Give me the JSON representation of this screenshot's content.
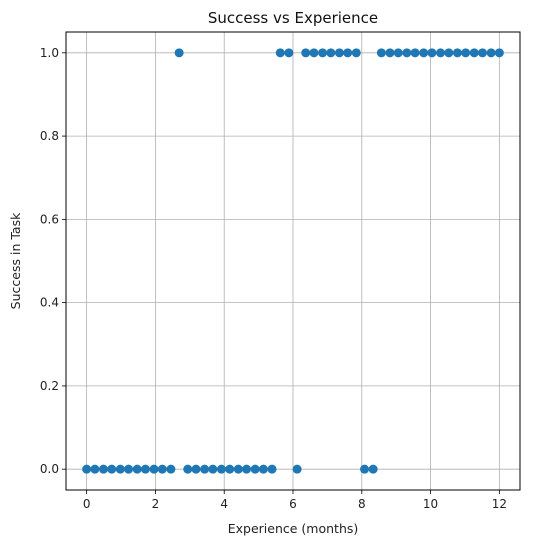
{
  "chart_data": {
    "type": "scatter",
    "title": "Success vs Experience",
    "xlabel": "Experience (months)",
    "ylabel": "Success in Task",
    "xlim": [
      -0.6,
      12.6
    ],
    "ylim": [
      -0.05,
      1.05
    ],
    "xticks": [
      0,
      2,
      4,
      6,
      8,
      10,
      12
    ],
    "yticks": [
      0.0,
      0.2,
      0.4,
      0.6,
      0.8,
      1.0
    ],
    "xtick_labels": [
      "0",
      "2",
      "4",
      "6",
      "8",
      "10",
      "12"
    ],
    "ytick_labels": [
      "0.0",
      "0.2",
      "0.4",
      "0.6",
      "0.8",
      "1.0"
    ],
    "grid": true,
    "marker_color": "#1f77b4",
    "points": [
      {
        "x": 0.0,
        "y": 0
      },
      {
        "x": 0.24,
        "y": 0
      },
      {
        "x": 0.49,
        "y": 0
      },
      {
        "x": 0.73,
        "y": 0
      },
      {
        "x": 0.98,
        "y": 0
      },
      {
        "x": 1.22,
        "y": 0
      },
      {
        "x": 1.47,
        "y": 0
      },
      {
        "x": 1.71,
        "y": 0
      },
      {
        "x": 1.96,
        "y": 0
      },
      {
        "x": 2.2,
        "y": 0
      },
      {
        "x": 2.45,
        "y": 0
      },
      {
        "x": 2.69,
        "y": 1
      },
      {
        "x": 2.94,
        "y": 0
      },
      {
        "x": 3.18,
        "y": 0
      },
      {
        "x": 3.43,
        "y": 0
      },
      {
        "x": 3.67,
        "y": 0
      },
      {
        "x": 3.92,
        "y": 0
      },
      {
        "x": 4.16,
        "y": 0
      },
      {
        "x": 4.41,
        "y": 0
      },
      {
        "x": 4.65,
        "y": 0
      },
      {
        "x": 4.9,
        "y": 0
      },
      {
        "x": 5.14,
        "y": 0
      },
      {
        "x": 5.39,
        "y": 0
      },
      {
        "x": 5.63,
        "y": 1
      },
      {
        "x": 5.88,
        "y": 1
      },
      {
        "x": 6.12,
        "y": 0
      },
      {
        "x": 6.37,
        "y": 1
      },
      {
        "x": 6.61,
        "y": 1
      },
      {
        "x": 6.86,
        "y": 1
      },
      {
        "x": 7.1,
        "y": 1
      },
      {
        "x": 7.35,
        "y": 1
      },
      {
        "x": 7.59,
        "y": 1
      },
      {
        "x": 7.84,
        "y": 1
      },
      {
        "x": 8.08,
        "y": 0
      },
      {
        "x": 8.33,
        "y": 0
      },
      {
        "x": 8.57,
        "y": 1
      },
      {
        "x": 8.82,
        "y": 1
      },
      {
        "x": 9.06,
        "y": 1
      },
      {
        "x": 9.31,
        "y": 1
      },
      {
        "x": 9.55,
        "y": 1
      },
      {
        "x": 9.8,
        "y": 1
      },
      {
        "x": 10.04,
        "y": 1
      },
      {
        "x": 10.29,
        "y": 1
      },
      {
        "x": 10.53,
        "y": 1
      },
      {
        "x": 10.78,
        "y": 1
      },
      {
        "x": 11.02,
        "y": 1
      },
      {
        "x": 11.27,
        "y": 1
      },
      {
        "x": 11.51,
        "y": 1
      },
      {
        "x": 11.76,
        "y": 1
      },
      {
        "x": 12.0,
        "y": 1
      }
    ]
  }
}
